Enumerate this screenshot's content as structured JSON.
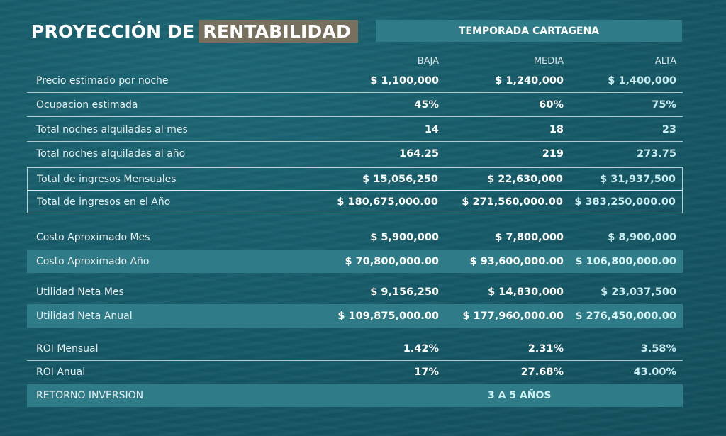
{
  "header": {
    "title_part1": "PROYECCIÓN DE",
    "title_part2": "RENTABILIDAD",
    "season": "TEMPORADA CARTAGENA"
  },
  "columns": [
    "BAJA",
    "MEDIA",
    "ALTA"
  ],
  "rows": [
    {
      "label": "Precio estimado por noche",
      "values": [
        "$ 1,100,000",
        "$ 1,240,000",
        "$ 1,400,000"
      ]
    },
    {
      "label": "Ocupacion estimada",
      "values": [
        "45%",
        "60%",
        "75%"
      ]
    },
    {
      "label": "Total noches alquiladas al mes",
      "values": [
        "14",
        "18",
        "23"
      ]
    },
    {
      "label": "Total noches alquiladas al año",
      "values": [
        "164.25",
        "219",
        "273.75"
      ]
    },
    {
      "label": "Total de ingresos Mensuales",
      "values": [
        "$ 15,056,250",
        "$ 22,630,000",
        "$ 31,937,500"
      ]
    },
    {
      "label": "Total de ingresos en el Año",
      "values": [
        "$ 180,675,000.00",
        "$ 271,560,000.00",
        "$ 383,250,000.00"
      ]
    },
    {
      "label": "Costo Aproximado Mes",
      "values": [
        "$ 5,900,000",
        "$ 7,800,000",
        "$ 8,900,000"
      ]
    },
    {
      "label": "Costo Aproximado Año",
      "values": [
        "$ 70,800,000.00",
        "$ 93,600,000.00",
        "$ 106,800,000.00"
      ]
    },
    {
      "label": "Utilidad Neta Mes",
      "values": [
        "$ 9,156,250",
        "$ 14,830,000",
        "$ 23,037,500"
      ]
    },
    {
      "label": "Utilidad Neta Anual",
      "values": [
        "$ 109,875,000.00",
        "$ 177,960,000.00",
        "$ 276,450,000.00"
      ]
    },
    {
      "label": "ROI Mensual",
      "values": [
        "1.42%",
        "2.31%",
        "3.58%"
      ]
    },
    {
      "label": "ROI Anual",
      "values": [
        "17%",
        "27.68%",
        "43.00%"
      ]
    }
  ],
  "return": {
    "label": "RETORNO INVERSION",
    "value": "3 A 5 AÑOS"
  },
  "colors": {
    "band": "#2f7b87",
    "title_highlight": "#77705e",
    "background": "#175b69"
  }
}
